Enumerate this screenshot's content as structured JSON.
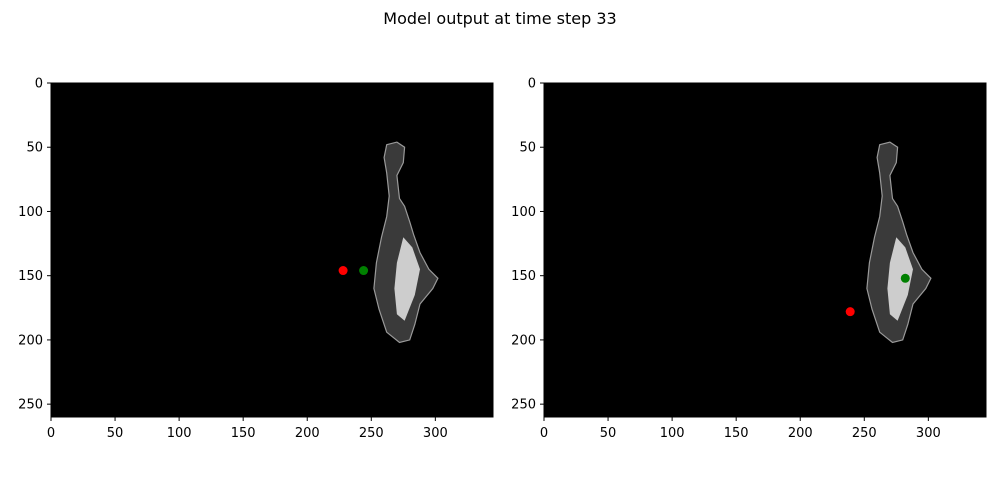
{
  "figure": {
    "title": "Model output at time step 33"
  },
  "chart_data": [
    {
      "type": "scatter",
      "panel": "left",
      "xlim": [
        0,
        345
      ],
      "ylim": [
        260,
        0
      ],
      "y_inverted": true,
      "xticks": [
        0,
        50,
        100,
        150,
        200,
        250,
        300
      ],
      "yticks": [
        0,
        50,
        100,
        150,
        200,
        250
      ],
      "background": "#000000",
      "series": [
        {
          "color": "#ff0000",
          "points": [
            {
              "x": 228,
              "y": 146
            }
          ]
        },
        {
          "color": "#008000",
          "points": [
            {
              "x": 244,
              "y": 146
            }
          ]
        }
      ],
      "object_outline": [
        [
          262,
          48
        ],
        [
          270,
          46
        ],
        [
          276,
          50
        ],
        [
          275,
          62
        ],
        [
          270,
          72
        ],
        [
          272,
          90
        ],
        [
          276,
          96
        ],
        [
          280,
          108
        ],
        [
          283,
          118
        ],
        [
          288,
          132
        ],
        [
          295,
          145
        ],
        [
          302,
          152
        ],
        [
          298,
          160
        ],
        [
          288,
          172
        ],
        [
          284,
          188
        ],
        [
          280,
          200
        ],
        [
          272,
          202
        ],
        [
          262,
          194
        ],
        [
          256,
          176
        ],
        [
          252,
          160
        ],
        [
          254,
          140
        ],
        [
          258,
          120
        ],
        [
          262,
          104
        ],
        [
          264,
          88
        ],
        [
          262,
          70
        ],
        [
          260,
          58
        ]
      ],
      "object_highlight": [
        [
          275,
          120
        ],
        [
          282,
          128
        ],
        [
          288,
          145
        ],
        [
          284,
          165
        ],
        [
          276,
          185
        ],
        [
          270,
          180
        ],
        [
          268,
          160
        ],
        [
          270,
          140
        ]
      ]
    },
    {
      "type": "scatter",
      "panel": "right",
      "xlim": [
        0,
        345
      ],
      "ylim": [
        260,
        0
      ],
      "y_inverted": true,
      "xticks": [
        0,
        50,
        100,
        150,
        200,
        250,
        300
      ],
      "yticks": [
        0,
        50,
        100,
        150,
        200,
        250
      ],
      "background": "#000000",
      "series": [
        {
          "color": "#ff0000",
          "points": [
            {
              "x": 239,
              "y": 178
            }
          ]
        },
        {
          "color": "#008000",
          "points": [
            {
              "x": 282,
              "y": 152
            }
          ]
        }
      ],
      "object_outline": [
        [
          262,
          48
        ],
        [
          270,
          46
        ],
        [
          276,
          50
        ],
        [
          275,
          62
        ],
        [
          270,
          72
        ],
        [
          272,
          90
        ],
        [
          276,
          96
        ],
        [
          280,
          108
        ],
        [
          283,
          118
        ],
        [
          288,
          132
        ],
        [
          295,
          145
        ],
        [
          302,
          152
        ],
        [
          298,
          160
        ],
        [
          288,
          172
        ],
        [
          284,
          188
        ],
        [
          280,
          200
        ],
        [
          272,
          202
        ],
        [
          262,
          194
        ],
        [
          256,
          176
        ],
        [
          252,
          160
        ],
        [
          254,
          140
        ],
        [
          258,
          120
        ],
        [
          262,
          104
        ],
        [
          264,
          88
        ],
        [
          262,
          70
        ],
        [
          260,
          58
        ]
      ],
      "object_highlight": [
        [
          275,
          120
        ],
        [
          282,
          128
        ],
        [
          288,
          145
        ],
        [
          284,
          165
        ],
        [
          276,
          185
        ],
        [
          270,
          180
        ],
        [
          268,
          160
        ],
        [
          270,
          140
        ]
      ]
    }
  ]
}
